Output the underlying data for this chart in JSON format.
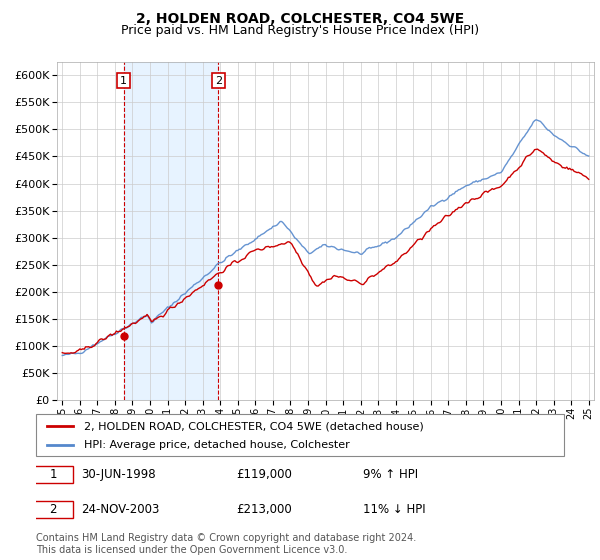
{
  "title": "2, HOLDEN ROAD, COLCHESTER, CO4 5WE",
  "subtitle": "Price paid vs. HM Land Registry's House Price Index (HPI)",
  "ylim": [
    0,
    625000
  ],
  "yticks": [
    0,
    50000,
    100000,
    150000,
    200000,
    250000,
    300000,
    350000,
    400000,
    450000,
    500000,
    550000,
    600000
  ],
  "hpi_color": "#5588cc",
  "price_color": "#cc0000",
  "grid_color": "#cccccc",
  "shaded_color": "#ddeeff",
  "dashed_color": "#cc0000",
  "purchase1": {
    "date_num": 1998.5,
    "price": 119000,
    "label": "1",
    "date_str": "30-JUN-1998",
    "pct": "9%",
    "dir": "↑"
  },
  "purchase2": {
    "date_num": 2003.9,
    "price": 213000,
    "label": "2",
    "date_str": "24-NOV-2003",
    "pct": "11%",
    "dir": "↓"
  },
  "legend_line1": "2, HOLDEN ROAD, COLCHESTER, CO4 5WE (detached house)",
  "legend_line2": "HPI: Average price, detached house, Colchester",
  "footer": "Contains HM Land Registry data © Crown copyright and database right 2024.\nThis data is licensed under the Open Government Licence v3.0.",
  "title_fontsize": 10,
  "subtitle_fontsize": 9,
  "axis_fontsize": 8,
  "legend_fontsize": 8,
  "footer_fontsize": 7,
  "xstart": 1995,
  "xend": 2025
}
